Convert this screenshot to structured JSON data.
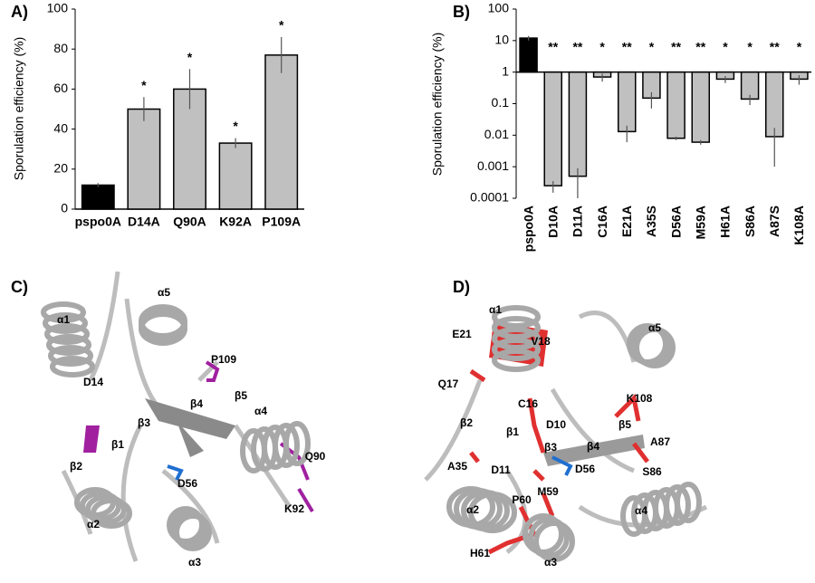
{
  "chart_data": [
    {
      "type": "bar",
      "panel_label": "A)",
      "y_label": "Sporulation efficiency (%)",
      "categories": [
        "pspo0A",
        "D14A",
        "Q90A",
        "K92A",
        "P109A"
      ],
      "values": [
        12,
        50,
        60,
        33,
        77
      ],
      "errors": [
        1,
        6,
        10,
        2.5,
        9
      ],
      "annotations": [
        null,
        "*",
        "*",
        "*",
        "*"
      ],
      "colors": [
        "#000000",
        "#c0c0c0",
        "#c0c0c0",
        "#c0c0c0",
        "#c0c0c0"
      ],
      "ylim": [
        0,
        100
      ],
      "yticks": [
        0,
        20,
        40,
        60,
        80,
        100
      ],
      "log": false
    },
    {
      "type": "bar",
      "panel_label": "B)",
      "y_label": "Sporulation efficiency (%)",
      "categories": [
        "pspo0A",
        "D10A",
        "D11A",
        "C16A",
        "E21A",
        "A35S",
        "D56A",
        "M59A",
        "H61A",
        "S86A",
        "A87S",
        "K108A"
      ],
      "values": [
        12,
        0.00025,
        0.0005,
        0.7,
        0.013,
        0.15,
        0.008,
        0.006,
        0.6,
        0.14,
        0.009,
        0.6
      ],
      "errors": [
        2,
        0.0001,
        0.0004,
        0.2,
        0.007,
        0.08,
        0.001,
        0.001,
        0.15,
        0.05,
        0.008,
        0.2
      ],
      "annotations": [
        null,
        "**",
        "**",
        "*",
        "**",
        "*",
        "**",
        "**",
        "*",
        "*",
        "**",
        "*"
      ],
      "colors": [
        "#000000",
        "#c0c0c0",
        "#c0c0c0",
        "#c0c0c0",
        "#c0c0c0",
        "#c0c0c0",
        "#c0c0c0",
        "#c0c0c0",
        "#c0c0c0",
        "#c0c0c0",
        "#c0c0c0",
        "#c0c0c0"
      ],
      "ylim": [
        0.0001,
        100
      ],
      "yticks": [
        0.0001,
        0.001,
        0.01,
        0.1,
        1,
        10,
        100
      ],
      "log": true,
      "bar_base": 1
    }
  ],
  "structures": [
    {
      "panel_label": "C)",
      "labels": [
        "α5",
        "P109",
        "α1",
        "β4",
        "β5",
        "D14",
        "β3",
        "β1",
        "α4",
        "Q90",
        "β2",
        "D56",
        "α2",
        "α3",
        "K92"
      ]
    },
    {
      "panel_label": "D)",
      "labels": [
        "α1",
        "E21",
        "V18",
        "α5",
        "Q17",
        "C16",
        "K108",
        "β2",
        "β1",
        "D10",
        "β5",
        "A87",
        "β3",
        "β4",
        "A35",
        "D11",
        "D56",
        "S86",
        "M59",
        "P60",
        "α2",
        "α4",
        "H61",
        "α3"
      ]
    }
  ]
}
